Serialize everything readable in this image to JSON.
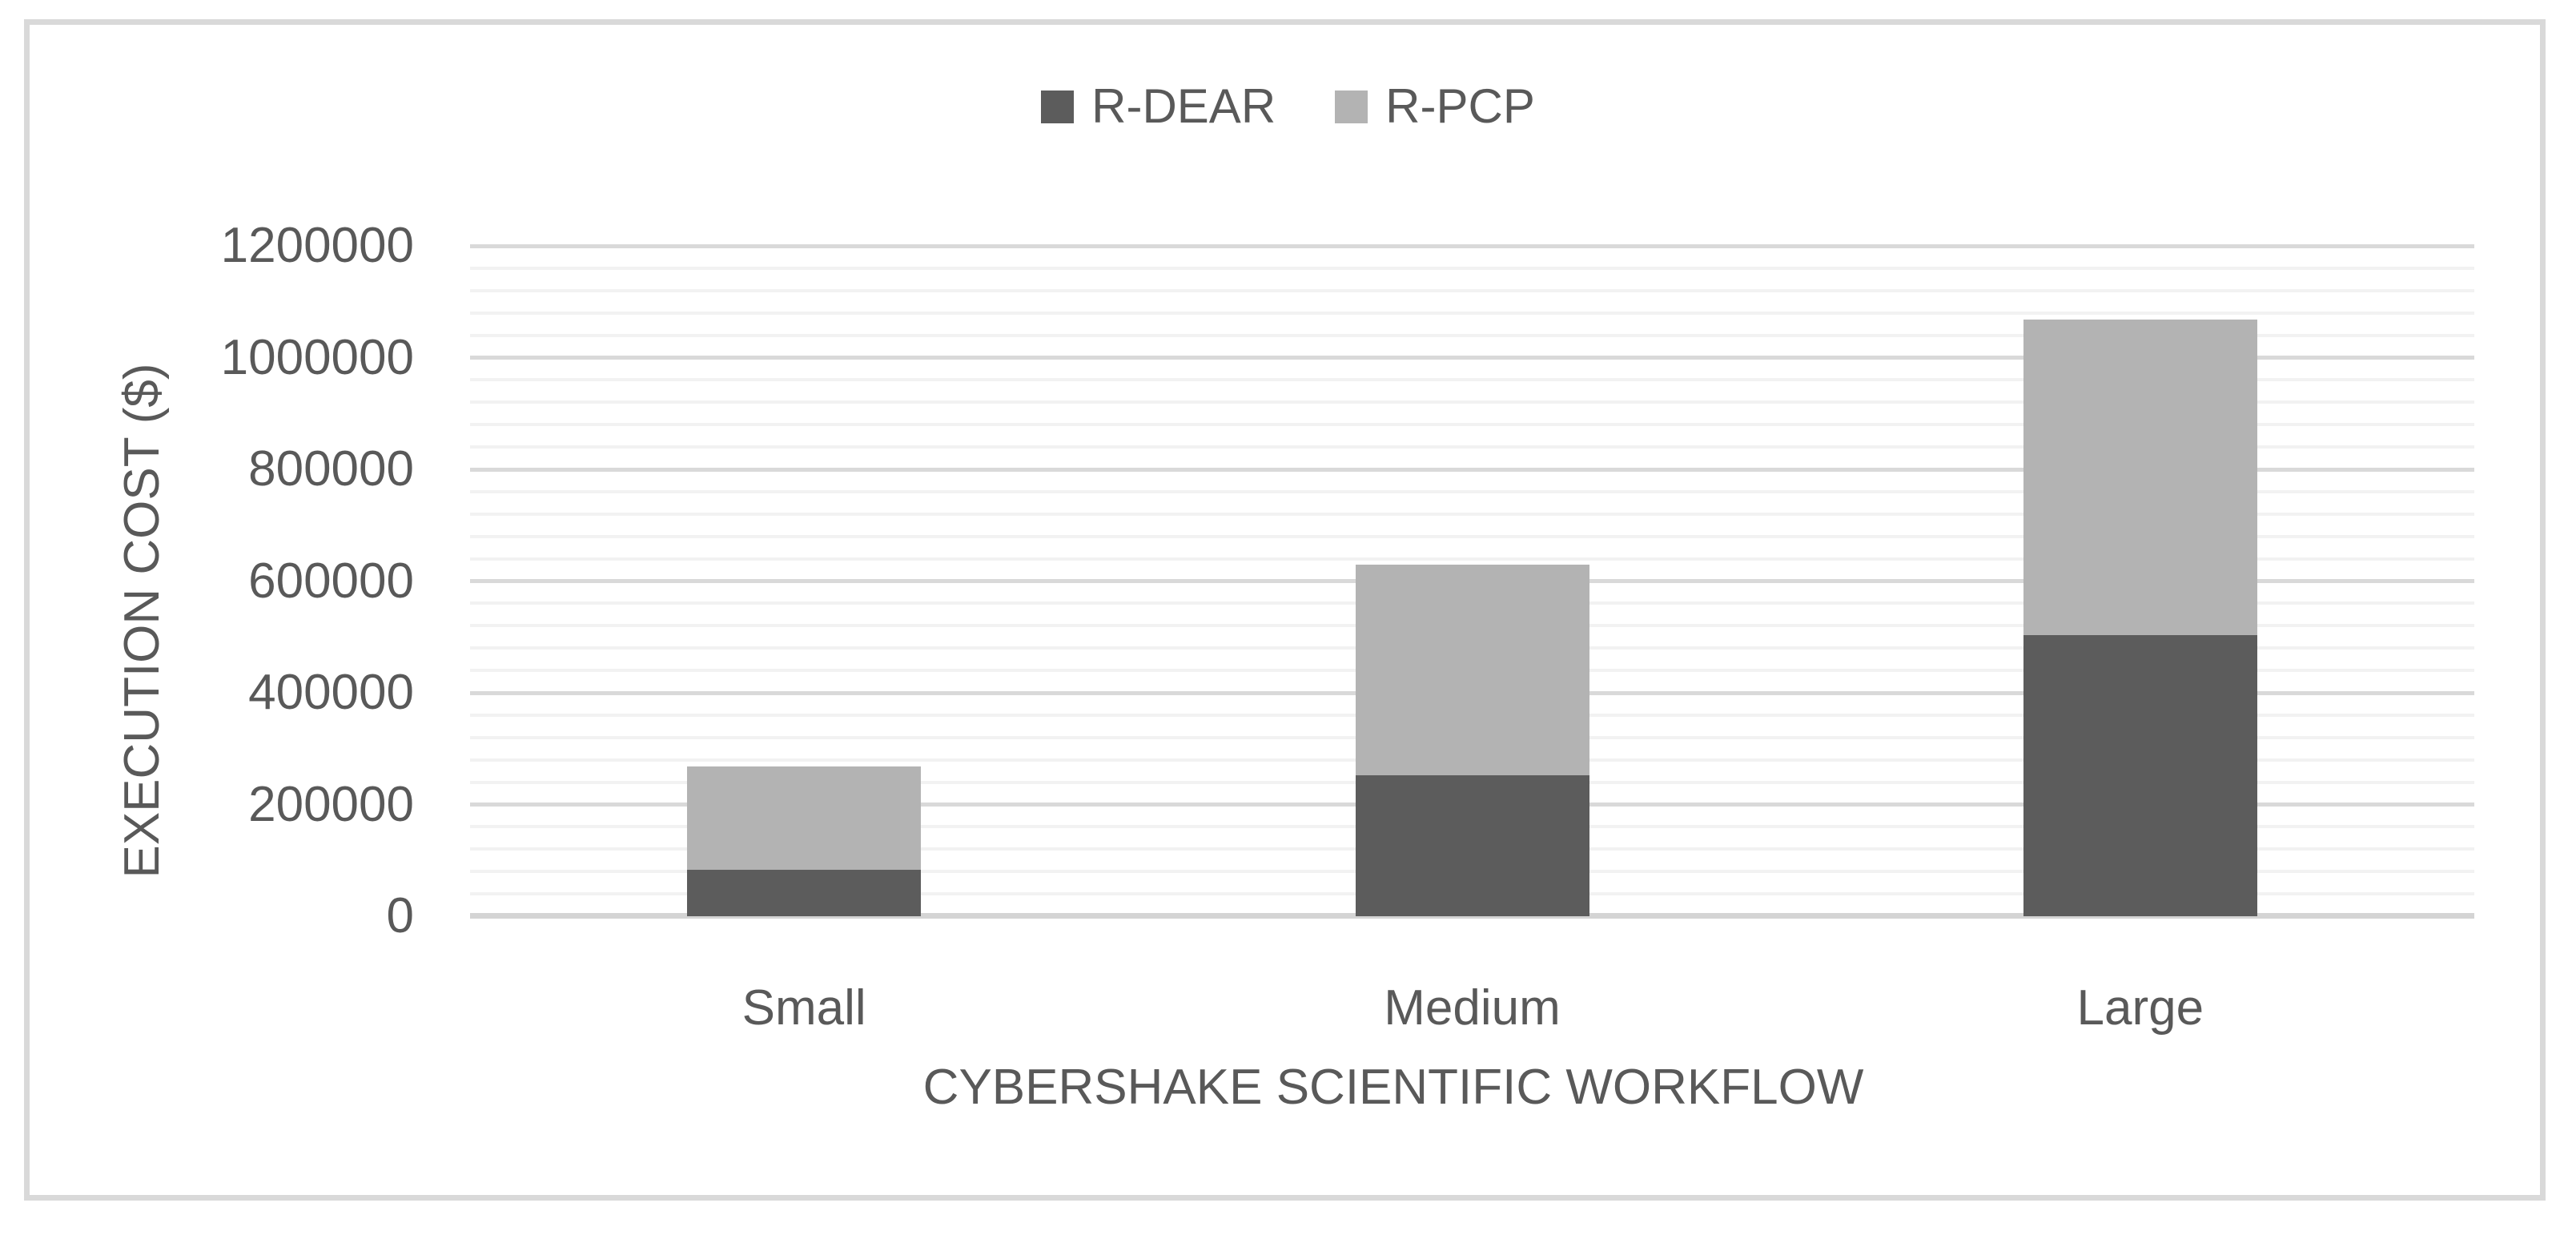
{
  "chart_data": {
    "type": "bar",
    "stacked": true,
    "orientation": "vertical",
    "categories": [
      "Small",
      "Medium",
      "Large"
    ],
    "series": [
      {
        "name": "R-DEAR",
        "color": "#5c5c5c",
        "values": [
          83000,
          252000,
          503000
        ]
      },
      {
        "name": "R-PCP",
        "color": "#b3b3b3",
        "values": [
          185000,
          378000,
          565000
        ]
      }
    ],
    "stack_totals": [
      268000,
      630000,
      1068000
    ],
    "xlabel": "CYBERSHAKE SCIENTIFIC WORKFLOW",
    "ylabel": "EXECUTION COST ($)",
    "ylim": [
      0,
      1200000
    ],
    "ytick_step": 200000,
    "yminor_step": 40000,
    "ytick_labels": [
      "0",
      "200000",
      "400000",
      "600000",
      "800000",
      "1000000",
      "1200000"
    ],
    "legend_position": "top-center",
    "grid": "horizontal-major-and-minor"
  },
  "style": {
    "text_color": "#595959",
    "major_grid_color": "#d9d9d9",
    "minor_grid_color": "#f2f2f2",
    "axis_line_color": "#d4d4d4",
    "border_color": "#d9d9d9",
    "background": "#ffffff"
  }
}
